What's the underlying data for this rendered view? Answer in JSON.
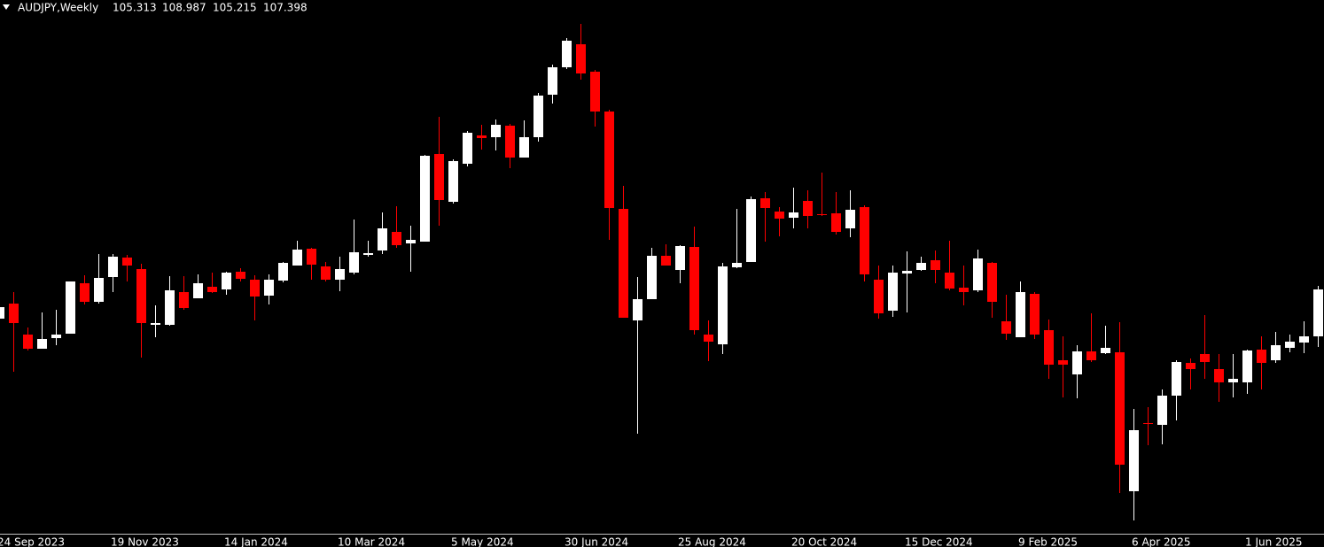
{
  "chart_data": {
    "type": "candlestick",
    "title": "AUDJPY,Weekly",
    "header_ohlc": [
      105.313,
      108.987,
      105.215,
      107.398
    ],
    "categories": [
      "24 Sep 2023",
      null,
      null,
      null,
      null,
      null,
      null,
      null,
      "19 Nov 2023",
      null,
      null,
      null,
      null,
      null,
      null,
      null,
      "14 Jan 2024",
      null,
      null,
      null,
      null,
      null,
      null,
      null,
      "10 Mar 2024",
      null,
      null,
      null,
      null,
      null,
      null,
      null,
      "5 May 2024",
      null,
      null,
      null,
      null,
      null,
      null,
      null,
      "30 Jun 2024",
      null,
      null,
      null,
      null,
      null,
      null,
      null,
      "25 Aug 2024",
      null,
      null,
      null,
      null,
      null,
      null,
      null,
      "20 Oct 2024",
      null,
      null,
      null,
      null,
      null,
      null,
      null,
      "15 Dec 2024",
      null,
      null,
      null,
      null,
      null,
      null,
      null,
      "9 Feb 2025",
      null,
      null,
      null,
      null,
      null,
      null,
      null,
      "6 Apr 2025",
      null,
      null,
      null,
      null,
      null,
      null,
      null,
      "1 Jun 2025",
      null,
      null,
      null,
      null,
      null
    ],
    "open": [
      96.0,
      96.68,
      95.28,
      94.64,
      95.12,
      95.32,
      97.6,
      96.76,
      97.88,
      98.76,
      98.24,
      95.72,
      95.72,
      97.2,
      96.92,
      97.44,
      97.32,
      98.12,
      97.76,
      97.04,
      97.72,
      98.4,
      99.16,
      98.36,
      97.76,
      98.08,
      98.88,
      99.08,
      99.92,
      99.4,
      99.48,
      103.44,
      101.28,
      103.0,
      104.28,
      104.2,
      104.72,
      103.28,
      104.2,
      106.12,
      107.36,
      108.4,
      107.16,
      105.36,
      100.96,
      95.92,
      96.88,
      98.84,
      98.2,
      99.24,
      95.28,
      94.84,
      98.32,
      98.56,
      101.44,
      100.84,
      100.56,
      101.32,
      100.72,
      100.76,
      100.08,
      101.04,
      97.76,
      96.36,
      98.04,
      98.2,
      98.64,
      98.08,
      97.4,
      97.28,
      98.52,
      95.88,
      95.16,
      97.12,
      95.48,
      94.12,
      93.48,
      94.52,
      94.44,
      94.48,
      88.2,
      91.28,
      91.2,
      92.52,
      94.0,
      94.4,
      93.72,
      93.12,
      93.12,
      94.6,
      94.12,
      94.68,
      94.92,
      95.2
    ],
    "high": [
      96.68,
      97.2,
      95.6,
      96.28,
      96.4,
      97.68,
      97.96,
      98.92,
      98.92,
      98.88,
      98.48,
      96.6,
      97.92,
      97.92,
      98.0,
      98.08,
      98.12,
      98.28,
      97.96,
      98.0,
      98.56,
      99.52,
      99.2,
      98.56,
      98.8,
      100.48,
      99.52,
      100.8,
      101.08,
      100.2,
      103.4,
      105.12,
      103.2,
      104.48,
      104.76,
      105.0,
      104.8,
      104.96,
      106.2,
      107.48,
      108.68,
      109.32,
      107.24,
      105.44,
      102.0,
      97.88,
      99.2,
      99.36,
      99.32,
      100.16,
      95.92,
      98.52,
      100.96,
      101.52,
      101.72,
      101.04,
      101.92,
      101.8,
      102.6,
      101.72,
      101.8,
      101.12,
      98.4,
      98.4,
      99.04,
      98.8,
      99.08,
      99.52,
      98.4,
      99.12,
      98.56,
      97.08,
      97.68,
      97.2,
      95.96,
      95.2,
      94.8,
      96.24,
      95.68,
      95.84,
      91.92,
      92.0,
      92.8,
      94.12,
      94.2,
      96.16,
      94.4,
      94.4,
      94.6,
      95.2,
      95.4,
      95.28,
      95.88,
      97.48
    ],
    "low": [
      95.92,
      93.6,
      94.56,
      94.64,
      94.8,
      95.32,
      96.64,
      96.68,
      97.2,
      97.68,
      94.24,
      95.16,
      95.68,
      96.4,
      96.92,
      97.16,
      97.08,
      97.68,
      95.92,
      96.64,
      97.64,
      98.4,
      97.76,
      97.68,
      97.24,
      98.0,
      98.8,
      98.92,
      99.2,
      98.12,
      99.48,
      100.2,
      101.2,
      102.88,
      103.64,
      103.6,
      102.8,
      103.28,
      104.0,
      105.72,
      107.28,
      106.8,
      104.68,
      99.56,
      96.04,
      90.8,
      96.88,
      98.4,
      97.6,
      95.28,
      94.08,
      94.4,
      98.28,
      98.56,
      99.48,
      99.72,
      100.08,
      100.08,
      100.64,
      99.8,
      99.68,
      97.68,
      96.0,
      96.08,
      96.28,
      98.16,
      97.6,
      97.28,
      96.6,
      97.2,
      96.04,
      95.04,
      95.16,
      95.08,
      93.28,
      92.44,
      92.4,
      94.04,
      94.4,
      88.12,
      86.88,
      90.28,
      90.32,
      91.4,
      92.8,
      93.28,
      92.24,
      92.44,
      92.6,
      92.8,
      94.0,
      94.48,
      94.44,
      94.72
    ],
    "close": [
      96.52,
      95.8,
      94.64,
      95.08,
      95.28,
      97.68,
      96.76,
      97.84,
      98.8,
      98.4,
      95.8,
      95.8,
      97.28,
      96.48,
      97.6,
      97.2,
      98.08,
      97.8,
      97.0,
      97.76,
      98.52,
      99.12,
      98.44,
      97.76,
      98.24,
      99.0,
      98.96,
      100.08,
      99.32,
      99.56,
      103.36,
      101.36,
      103.12,
      104.4,
      104.16,
      104.76,
      103.28,
      104.2,
      106.08,
      107.36,
      108.56,
      107.08,
      105.36,
      101.0,
      96.04,
      96.88,
      98.84,
      98.4,
      99.28,
      95.48,
      94.96,
      98.36,
      98.52,
      101.4,
      101.0,
      100.52,
      100.8,
      100.64,
      100.68,
      99.92,
      100.92,
      98.0,
      96.24,
      98.08,
      98.16,
      98.52,
      98.2,
      97.36,
      97.2,
      98.72,
      96.76,
      95.32,
      97.2,
      95.28,
      93.92,
      93.92,
      94.52,
      94.12,
      94.68,
      89.4,
      90.96,
      91.24,
      92.52,
      94.04,
      93.72,
      94.04,
      93.12,
      93.28,
      94.56,
      94.0,
      94.8,
      94.96,
      95.2,
      97.32
    ],
    "up_color": "#ffffff",
    "down_color": "#ff0000",
    "ylim": [
      86.28,
      110.4
    ]
  }
}
